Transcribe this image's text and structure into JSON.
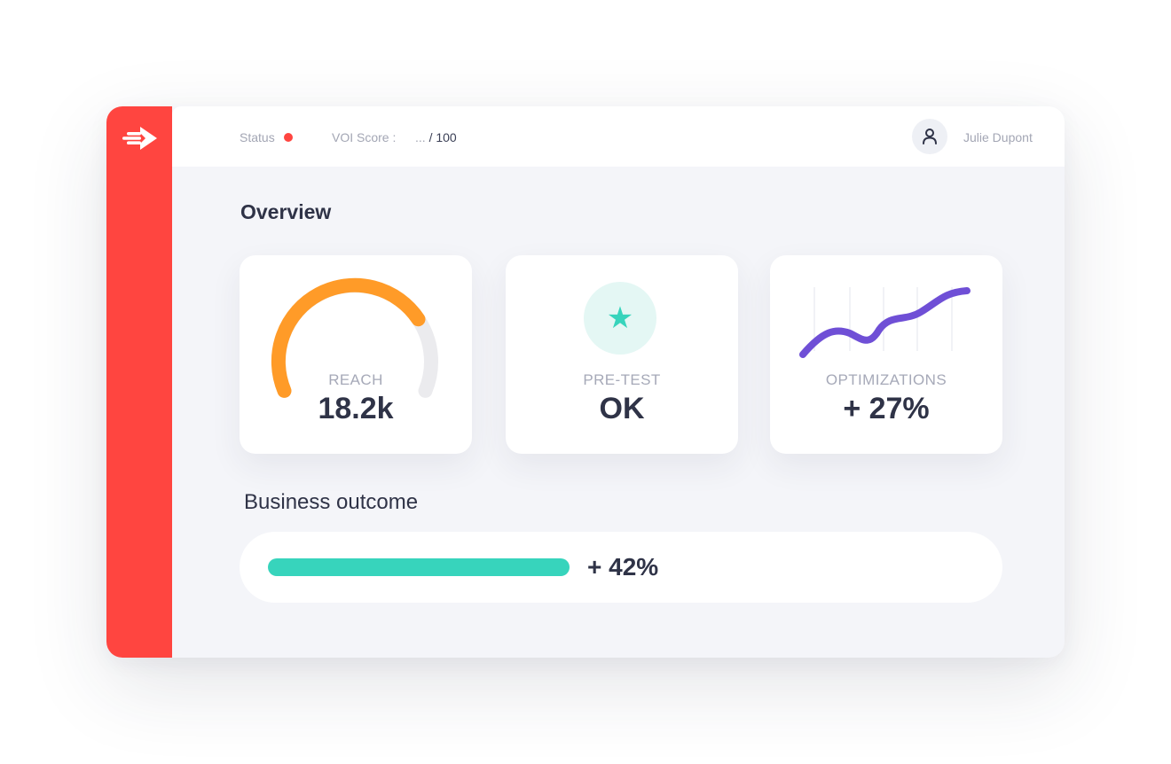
{
  "sidebar": {
    "logo_icon": "speed-arrow-icon",
    "color": "#ff4540"
  },
  "topbar": {
    "status_label": "Status",
    "status_color": "#ff4540",
    "voi_label": "VOI Score :",
    "voi_value_placeholder": "...",
    "voi_value_max": "/ 100",
    "user_icon": "user-icon",
    "user_name": "Julie Dupont"
  },
  "overview": {
    "title": "Overview",
    "cards": [
      {
        "label": "REACH",
        "value": "18.2k",
        "icon": "gauge-icon",
        "gauge_fraction": 0.75,
        "color": "#ff9b28"
      },
      {
        "label": "PRE-TEST",
        "value": "OK",
        "icon": "star-icon",
        "color": "#37d4bc"
      },
      {
        "label": "OPTIMIZATIONS",
        "value": "+ 27%",
        "icon": "trend-line-icon",
        "color": "#6f4fd6"
      }
    ]
  },
  "business": {
    "title": "Business outcome",
    "value": "+ 42%",
    "progress_fraction": 1.0,
    "color": "#37d4bc"
  }
}
